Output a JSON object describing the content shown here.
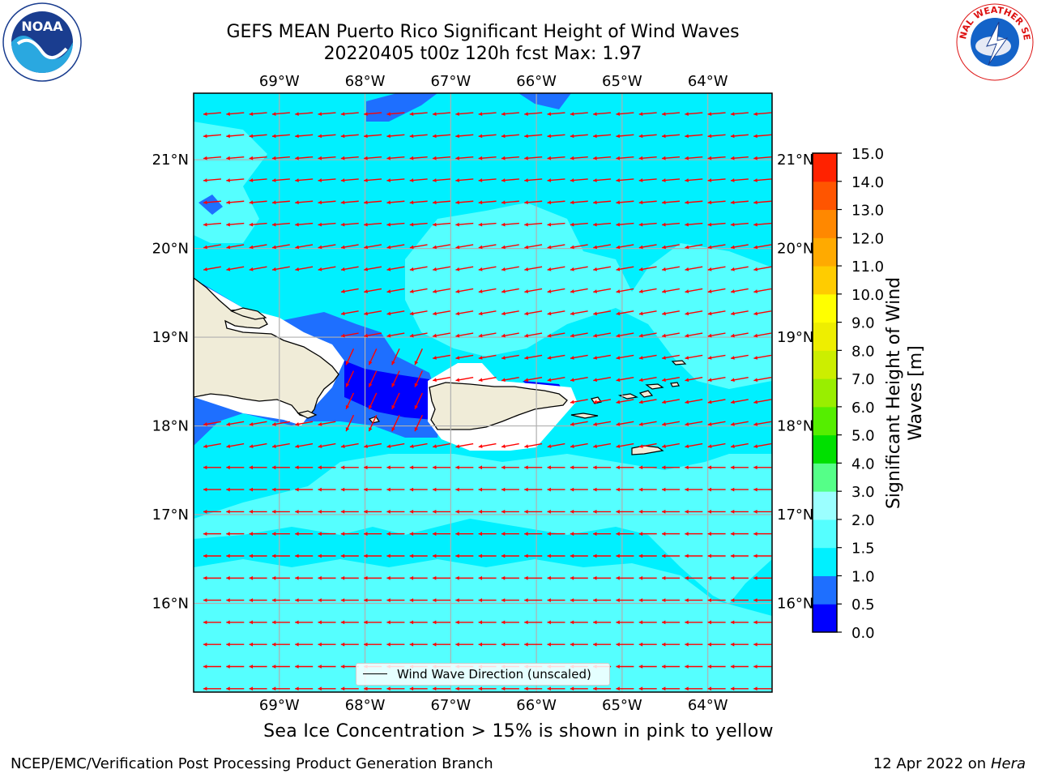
{
  "title": {
    "line1": "GEFS MEAN Puerto Rico Significant Height of Wind Waves",
    "line2": "20220405 t00z 120h fcst   Max: 1.97"
  },
  "logos": [
    {
      "name": "noaa-logo",
      "text": "NOAA"
    },
    {
      "name": "nws-logo",
      "text": "NATIONAL WEATHER SERVICE"
    }
  ],
  "map": {
    "lon_labels": [
      "69°W",
      "68°W",
      "67°W",
      "66°W",
      "65°W",
      "64°W"
    ],
    "lat_labels": [
      "21°N",
      "20°N",
      "19°N",
      "18°N",
      "17°N",
      "16°N"
    ],
    "lon_range": [
      -70.0,
      -63.25
    ],
    "lat_range": [
      15.0,
      21.75
    ],
    "arrow_color": "#ff0000",
    "legend_label": "Wind Wave Direction (unscaled)"
  },
  "colorbar": {
    "title_line1": "Significant Height of Wind",
    "title_line2": "Waves [m]",
    "ticks": [
      "0.0",
      "0.5",
      "1.0",
      "1.5",
      "2.0",
      "3.0",
      "4.0",
      "5.0",
      "6.0",
      "7.0",
      "8.0",
      "9.0",
      "10.0",
      "11.0",
      "12.0",
      "13.0",
      "14.0",
      "15.0"
    ],
    "colors": [
      "#0000ff",
      "#1e6fff",
      "#00f0ff",
      "#55ffff",
      "#9bffff",
      "#55ff88",
      "#00e000",
      "#55ee00",
      "#99ee00",
      "#ccee00",
      "#eeee00",
      "#ffff00",
      "#ffcc00",
      "#ffaa00",
      "#ff8800",
      "#ff5500",
      "#ff2200"
    ]
  },
  "bottom_note": "Sea Ice Concentration > 15% is shown in pink to yellow",
  "footer": {
    "left": "NCEP/EMC/Verification Post Processing Product Generation Branch",
    "right_prefix": "12 Apr 2022 on ",
    "right_host": "Hera"
  }
}
